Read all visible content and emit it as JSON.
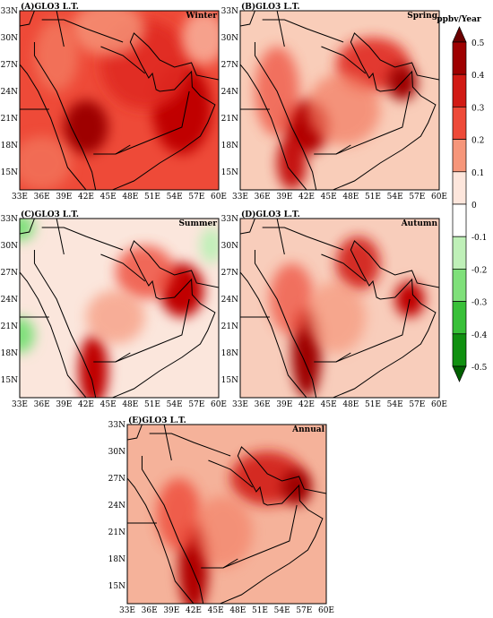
{
  "panels": [
    {
      "label": "(A)GLO3 L.T.",
      "season": "Winter"
    },
    {
      "label": "(B)GLO3 L.T.",
      "season": "Spring"
    },
    {
      "label": "(C)GLO3 L.T.",
      "season": "Summer"
    },
    {
      "label": "(D)GLO3 L.T.",
      "season": "Autumn"
    },
    {
      "label": "(E)GLO3 L.T.",
      "season": "Annual"
    }
  ],
  "x_ticks": [
    "33E",
    "36E",
    "39E",
    "42E",
    "45E",
    "48E",
    "51E",
    "54E",
    "57E",
    "60E"
  ],
  "y_ticks": [
    "15N",
    "18N",
    "21N",
    "24N",
    "27N",
    "30N",
    "33N"
  ],
  "colorbar": {
    "title": "ppbv/Year",
    "ticks": [
      0.5,
      0.4,
      0.3,
      0.2,
      0.1,
      0,
      -0.1,
      -0.2,
      -0.3,
      -0.4,
      -0.5
    ],
    "colors": [
      "#6b0000",
      "#9e0000",
      "#d11a14",
      "#ee4a38",
      "#f6967a",
      "#fde6dc",
      "#ffffff",
      "#bff0b8",
      "#7fe07a",
      "#38c038",
      "#109010",
      "#006000"
    ]
  }
}
